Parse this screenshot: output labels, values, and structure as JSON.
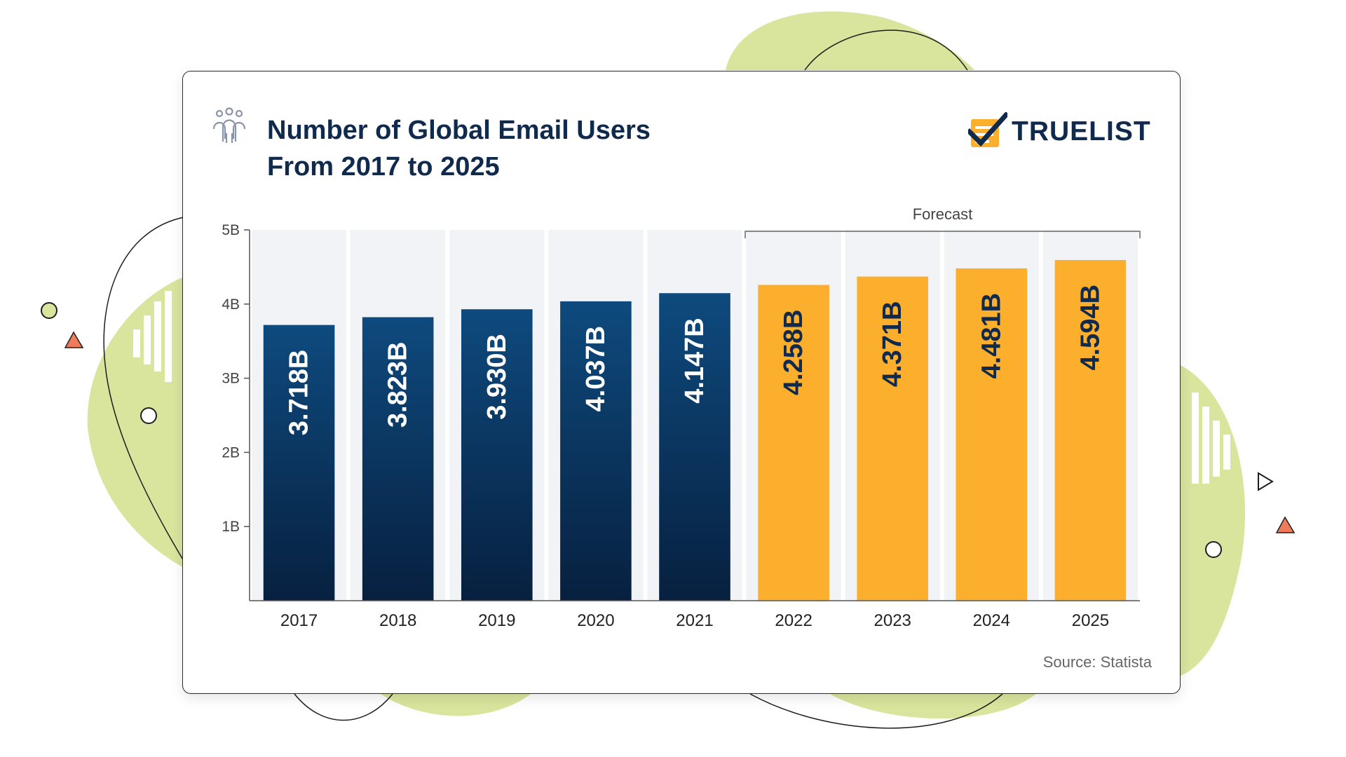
{
  "header": {
    "title_line1": "Number of Global Email Users",
    "title_line2": "From 2017 to 2025",
    "logo_text": "TRUELIST",
    "people_icon": "people-group-icon",
    "logo_icon": "checklist-check-icon"
  },
  "chart_data": {
    "type": "bar",
    "title": "Number of Global Email Users From 2017 to 2025",
    "categories": [
      "2017",
      "2018",
      "2019",
      "2020",
      "2021",
      "2022",
      "2023",
      "2024",
      "2025"
    ],
    "values": [
      3.718,
      3.823,
      3.93,
      4.037,
      4.147,
      4.258,
      4.371,
      4.481,
      4.594
    ],
    "value_labels": [
      "3.718B",
      "3.823B",
      "3.930B",
      "4.037B",
      "4.147B",
      "4.258B",
      "4.371B",
      "4.481B",
      "4.594B"
    ],
    "unit": "B",
    "ylim": [
      0,
      5
    ],
    "yticks": [
      1,
      2,
      3,
      4,
      5
    ],
    "ytick_labels": [
      "1B",
      "2B",
      "3B",
      "4B",
      "5B"
    ],
    "xlabel": "",
    "ylabel": "",
    "grid": false,
    "forecast_label": "Forecast",
    "forecast_categories": [
      "2022",
      "2023",
      "2024",
      "2025"
    ],
    "colors": {
      "actual_top": "#0e4a7e",
      "actual_bottom": "#07203f",
      "forecast": "#fbaf2d",
      "column_bg": "#f1f3f7"
    }
  },
  "footer": {
    "source": "Source: Statista"
  },
  "colors": {
    "title": "#0f2a4d",
    "blob": "#d9e59d",
    "accent_triangle": "#f07b59"
  }
}
